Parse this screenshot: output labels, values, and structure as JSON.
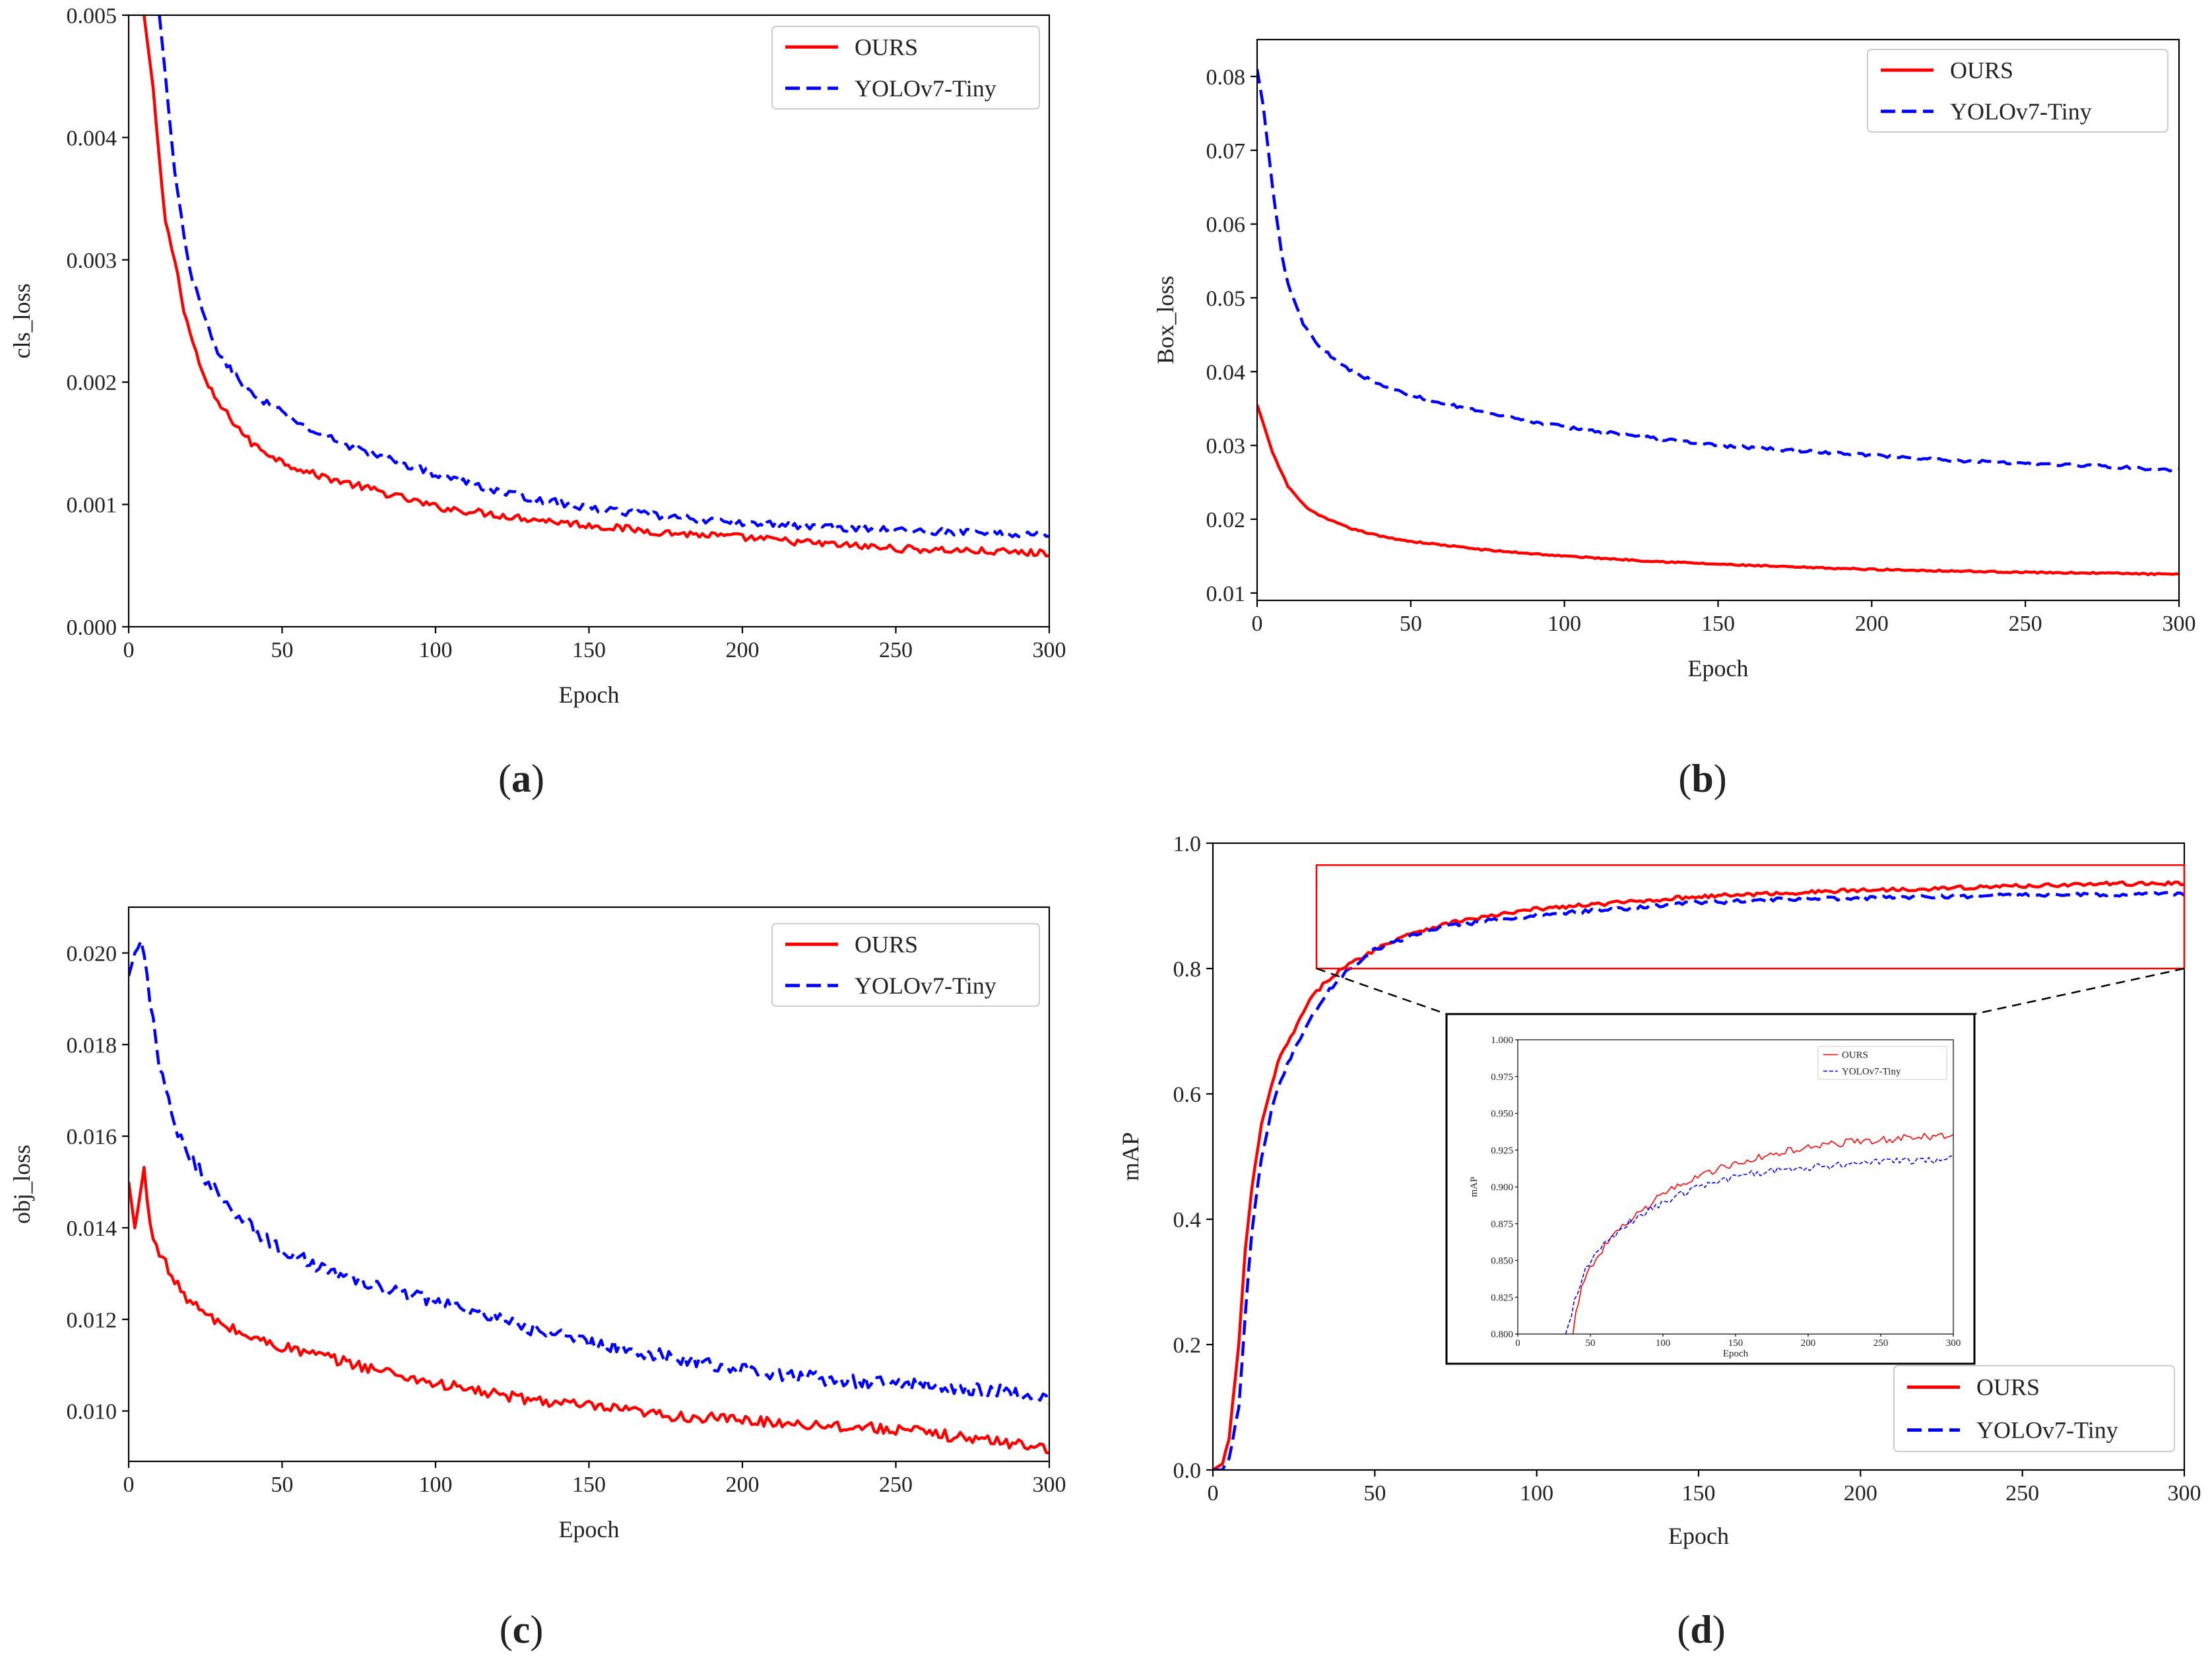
{
  "colors": {
    "ours": "#ff0000",
    "yolo": "#0000ff",
    "axis": "#000000",
    "zoom_box": "#ff0000"
  },
  "chart_data": [
    {
      "id": "a",
      "type": "line",
      "panel_label": {
        "open": "(",
        "letter": "a",
        "close": ")"
      },
      "xlabel": "Epoch",
      "ylabel": "cls_loss",
      "xlim": [
        0,
        300
      ],
      "ylim": [
        0,
        0.005
      ],
      "xticks": [
        0,
        50,
        100,
        150,
        200,
        250,
        300
      ],
      "yticks": [
        0.0,
        0.001,
        0.002,
        0.003,
        0.004,
        0.005
      ],
      "ytick_labels": [
        "0.000",
        "0.001",
        "0.002",
        "0.003",
        "0.004",
        "0.005"
      ],
      "legend_position": "top-right",
      "series": [
        {
          "name": "OURS",
          "style": "solid",
          "color": "#ff0000",
          "noise": 3e-05,
          "x": [
            5,
            8,
            10,
            12,
            15,
            18,
            20,
            25,
            30,
            40,
            50,
            60,
            75,
            100,
            125,
            150,
            175,
            200,
            225,
            250,
            275,
            300
          ],
          "y": [
            0.005,
            0.0044,
            0.0038,
            0.0033,
            0.003,
            0.0026,
            0.0024,
            0.002,
            0.0018,
            0.0015,
            0.00135,
            0.00125,
            0.00115,
            0.00098,
            0.0009,
            0.00083,
            0.00077,
            0.00073,
            0.00068,
            0.00064,
            0.00062,
            0.0006
          ]
        },
        {
          "name": "YOLOv7-Tiny",
          "style": "dashed",
          "color": "#0000ff",
          "noise": 3e-05,
          "x": [
            10,
            12,
            15,
            18,
            20,
            25,
            30,
            40,
            50,
            60,
            75,
            100,
            125,
            150,
            175,
            200,
            225,
            250,
            275,
            300
          ],
          "y": [
            0.005,
            0.0045,
            0.0037,
            0.0032,
            0.0029,
            0.0025,
            0.0022,
            0.0019,
            0.00175,
            0.0016,
            0.00145,
            0.00125,
            0.00108,
            0.00097,
            0.0009,
            0.00085,
            0.00082,
            0.00079,
            0.00077,
            0.00075
          ]
        }
      ]
    },
    {
      "id": "b",
      "type": "line",
      "panel_label": {
        "open": "(",
        "letter": "b",
        "close": ")"
      },
      "xlabel": "Epoch",
      "ylabel": "Box_loss",
      "xlim": [
        0,
        300
      ],
      "ylim": [
        0.009,
        0.085
      ],
      "xticks": [
        0,
        50,
        100,
        150,
        200,
        250,
        300
      ],
      "yticks": [
        0.01,
        0.02,
        0.03,
        0.04,
        0.05,
        0.06,
        0.07,
        0.08
      ],
      "ytick_labels": [
        "0.01",
        "0.02",
        "0.03",
        "0.04",
        "0.05",
        "0.06",
        "0.07",
        "0.08"
      ],
      "legend_position": "top-right",
      "series": [
        {
          "name": "OURS",
          "style": "solid",
          "color": "#ff0000",
          "noise": 0.0001,
          "x": [
            0,
            2,
            5,
            10,
            15,
            20,
            30,
            40,
            50,
            75,
            100,
            125,
            150,
            175,
            200,
            225,
            250,
            275,
            300
          ],
          "y": [
            0.0355,
            0.033,
            0.029,
            0.0245,
            0.022,
            0.0205,
            0.0188,
            0.0177,
            0.017,
            0.0158,
            0.015,
            0.0144,
            0.0139,
            0.0135,
            0.0132,
            0.013,
            0.0128,
            0.0127,
            0.0125
          ]
        },
        {
          "name": "YOLOv7-Tiny",
          "style": "dashed",
          "color": "#0000ff",
          "noise": 0.0002,
          "x": [
            0,
            2,
            5,
            8,
            10,
            15,
            20,
            25,
            30,
            40,
            50,
            75,
            100,
            125,
            150,
            175,
            200,
            225,
            250,
            275,
            300
          ],
          "y": [
            0.081,
            0.076,
            0.065,
            0.056,
            0.052,
            0.0465,
            0.0435,
            0.0418,
            0.0403,
            0.0382,
            0.0368,
            0.0343,
            0.0325,
            0.0312,
            0.03,
            0.0293,
            0.0287,
            0.028,
            0.0276,
            0.0272,
            0.0266
          ]
        }
      ]
    },
    {
      "id": "c",
      "type": "line",
      "panel_label": {
        "open": "(",
        "letter": "c",
        "close": ")"
      },
      "xlabel": "Epoch",
      "ylabel": "obj_loss",
      "xlim": [
        0,
        300
      ],
      "ylim": [
        0.0089,
        0.021
      ],
      "xticks": [
        0,
        50,
        100,
        150,
        200,
        250,
        300
      ],
      "yticks": [
        0.01,
        0.012,
        0.014,
        0.016,
        0.018,
        0.02
      ],
      "ytick_labels": [
        "0.010",
        "0.012",
        "0.014",
        "0.016",
        "0.018",
        "0.020"
      ],
      "legend_position": "top-right",
      "series": [
        {
          "name": "OURS",
          "style": "solid",
          "color": "#ff0000",
          "noise": 0.00012,
          "x": [
            0,
            2,
            4,
            5,
            7,
            10,
            15,
            20,
            25,
            30,
            40,
            50,
            75,
            100,
            125,
            150,
            175,
            200,
            225,
            250,
            275,
            300
          ],
          "y": [
            0.015,
            0.014,
            0.0148,
            0.0153,
            0.014,
            0.0135,
            0.0128,
            0.0124,
            0.0121,
            0.0119,
            0.0116,
            0.0114,
            0.011,
            0.0106,
            0.0103,
            0.0101,
            0.0099,
            0.0098,
            0.0097,
            0.0096,
            0.0094,
            0.0092
          ]
        },
        {
          "name": "YOLOv7-Tiny",
          "style": "dashed",
          "color": "#0000ff",
          "noise": 0.00015,
          "x": [
            0,
            2,
            4,
            5,
            8,
            10,
            15,
            20,
            30,
            40,
            50,
            75,
            100,
            125,
            150,
            175,
            200,
            225,
            250,
            275,
            300
          ],
          "y": [
            0.0195,
            0.02,
            0.0202,
            0.02,
            0.0185,
            0.0175,
            0.0162,
            0.0155,
            0.0147,
            0.014,
            0.0135,
            0.0128,
            0.0124,
            0.0119,
            0.0115,
            0.0112,
            0.0109,
            0.0107,
            0.0106,
            0.0105,
            0.0103
          ]
        }
      ]
    },
    {
      "id": "d",
      "type": "line",
      "panel_label": {
        "open": "(",
        "letter": "d",
        "close": ")"
      },
      "xlabel": "Epoch",
      "ylabel": "mAP",
      "xlim": [
        0,
        300
      ],
      "ylim": [
        0,
        1.0
      ],
      "xticks": [
        0,
        50,
        100,
        150,
        200,
        250,
        300
      ],
      "yticks": [
        0.0,
        0.2,
        0.4,
        0.6,
        0.8,
        1.0
      ],
      "ytick_labels": [
        "0.0",
        "0.2",
        "0.4",
        "0.6",
        "0.8",
        "1.0"
      ],
      "legend_position": "lower-right",
      "zoom_box": {
        "x": [
          32,
          300
        ],
        "y": [
          0.8,
          0.965
        ]
      },
      "series": [
        {
          "name": "OURS",
          "style": "solid",
          "color": "#ff0000",
          "noise": 0.003,
          "x": [
            0,
            3,
            5,
            8,
            10,
            12,
            15,
            18,
            20,
            25,
            30,
            35,
            40,
            50,
            60,
            75,
            100,
            125,
            150,
            175,
            200,
            225,
            250,
            275,
            300
          ],
          "y": [
            0.0,
            0.01,
            0.05,
            0.2,
            0.35,
            0.45,
            0.55,
            0.61,
            0.65,
            0.7,
            0.75,
            0.78,
            0.8,
            0.83,
            0.855,
            0.875,
            0.895,
            0.905,
            0.915,
            0.92,
            0.925,
            0.928,
            0.932,
            0.935,
            0.936
          ]
        },
        {
          "name": "YOLOv7-Tiny",
          "style": "dashed",
          "color": "#0000ff",
          "noise": 0.003,
          "x": [
            0,
            3,
            5,
            8,
            10,
            12,
            15,
            18,
            20,
            25,
            30,
            35,
            40,
            50,
            60,
            75,
            100,
            125,
            150,
            175,
            200,
            225,
            250,
            275,
            300
          ],
          "y": [
            0.0,
            0.0,
            0.02,
            0.1,
            0.25,
            0.38,
            0.5,
            0.57,
            0.61,
            0.67,
            0.72,
            0.76,
            0.79,
            0.83,
            0.85,
            0.87,
            0.885,
            0.895,
            0.905,
            0.91,
            0.912,
            0.915,
            0.917,
            0.918,
            0.919
          ]
        }
      ],
      "inset": {
        "xlabel": "Epoch",
        "ylabel": "mAP",
        "xlim": [
          0,
          300
        ],
        "ylim": [
          0.8,
          1.0
        ],
        "xticks": [
          0,
          50,
          100,
          150,
          200,
          250,
          300
        ],
        "yticks": [
          0.8,
          0.825,
          0.85,
          0.875,
          0.9,
          0.925,
          0.95,
          0.975,
          1.0
        ],
        "ytick_labels": [
          "0.800",
          "0.825",
          "0.850",
          "0.875",
          "0.900",
          "0.925",
          "0.950",
          "0.975",
          "1.000"
        ],
        "legend_position": "top-right",
        "series": [
          {
            "name": "OURS",
            "style": "solid",
            "color": "#ff0000",
            "noise": 0.0025,
            "x": [
              38,
              40,
              45,
              50,
              60,
              75,
              100,
              125,
              150,
              175,
              200,
              225,
              250,
              275,
              300
            ],
            "y": [
              0.8,
              0.815,
              0.835,
              0.845,
              0.86,
              0.875,
              0.895,
              0.908,
              0.916,
              0.922,
              0.927,
              0.93,
              0.932,
              0.934,
              0.935
            ]
          },
          {
            "name": "YOLOv7-Tiny",
            "style": "dashed",
            "color": "#0000ff",
            "noise": 0.0025,
            "x": [
              33,
              36,
              40,
              45,
              50,
              60,
              75,
              100,
              125,
              150,
              175,
              200,
              225,
              250,
              275,
              300
            ],
            "y": [
              0.8,
              0.81,
              0.825,
              0.84,
              0.85,
              0.862,
              0.875,
              0.89,
              0.9,
              0.907,
              0.911,
              0.913,
              0.915,
              0.917,
              0.918,
              0.919
            ]
          }
        ]
      }
    }
  ]
}
